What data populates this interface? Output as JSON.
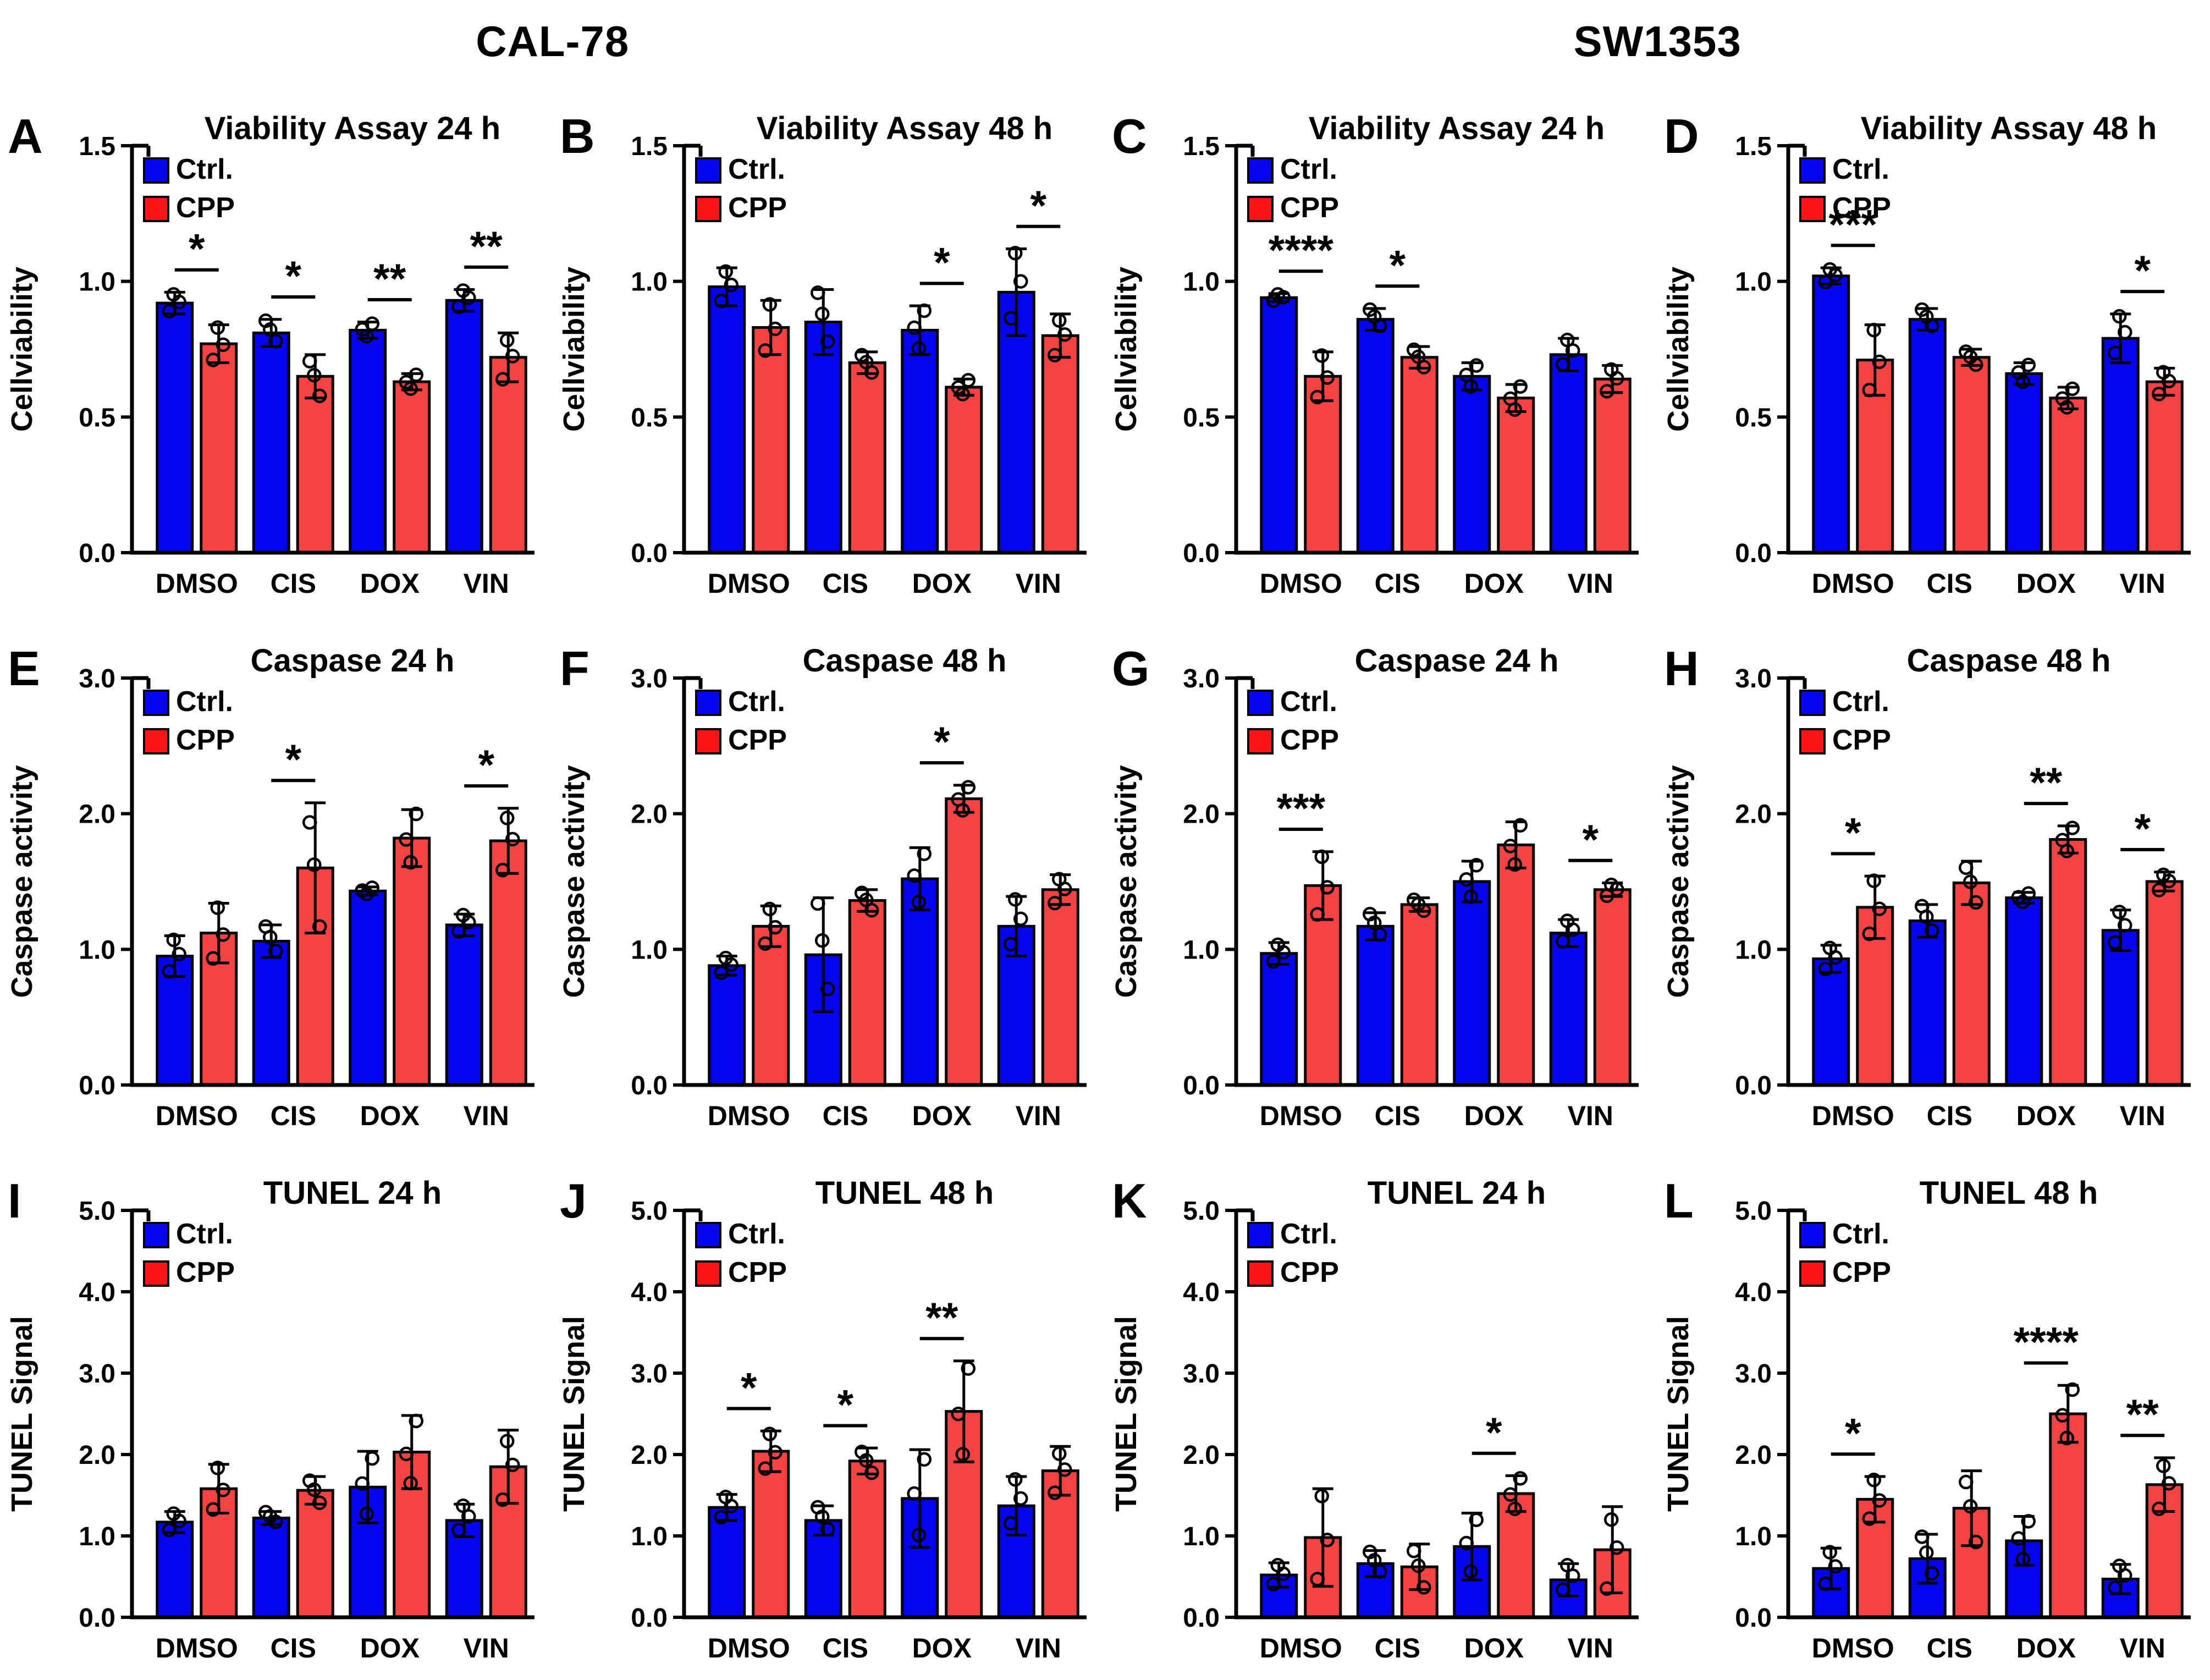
{
  "figure": {
    "column_headers": [
      {
        "label": "CAL-78"
      },
      {
        "label": "SW1353"
      }
    ],
    "legend": {
      "ctrl_label": "Ctrl.",
      "cpp_label": "CPP"
    },
    "colors": {
      "ctrl_bar": "#0505f0",
      "cpp_bar": "#f54343",
      "cpp_legend_swatch": "#fb1414",
      "ctrl_legend_swatch": "#0505f0",
      "axis": "#000000",
      "background": "#ffffff"
    }
  },
  "chart_data": [
    {
      "type": "bar",
      "panel": "A",
      "title": "Viability Assay 24 h",
      "ylabel": "Cellviability",
      "ymax": 1.5,
      "ystep": 0.5,
      "categories": [
        "DMSO",
        "CIS",
        "DOX",
        "VIN"
      ],
      "series": [
        {
          "name": "Ctrl.",
          "values": [
            0.92,
            0.81,
            0.82,
            0.93
          ],
          "errors": [
            0.04,
            0.05,
            0.03,
            0.04
          ]
        },
        {
          "name": "CPP",
          "values": [
            0.77,
            0.65,
            0.63,
            0.72
          ],
          "errors": [
            0.07,
            0.08,
            0.03,
            0.09
          ]
        }
      ],
      "sig": [
        "*",
        "*",
        "**",
        "**"
      ]
    },
    {
      "type": "bar",
      "panel": "B",
      "title": "Viability Assay 48 h",
      "ylabel": "Cellviability",
      "ymax": 1.5,
      "ystep": 0.5,
      "categories": [
        "DMSO",
        "CIS",
        "DOX",
        "VIN"
      ],
      "series": [
        {
          "name": "Ctrl.",
          "values": [
            0.98,
            0.85,
            0.82,
            0.96
          ],
          "errors": [
            0.07,
            0.12,
            0.09,
            0.16
          ]
        },
        {
          "name": "CPP",
          "values": [
            0.83,
            0.7,
            0.61,
            0.8
          ],
          "errors": [
            0.1,
            0.04,
            0.03,
            0.08
          ]
        }
      ],
      "sig": [
        null,
        null,
        "*",
        "*"
      ]
    },
    {
      "type": "bar",
      "panel": "C",
      "title": "Viability Assay 24 h",
      "ylabel": "Cellviability",
      "ymax": 1.5,
      "ystep": 0.5,
      "categories": [
        "DMSO",
        "CIS",
        "DOX",
        "VIN"
      ],
      "series": [
        {
          "name": "Ctrl.",
          "values": [
            0.94,
            0.86,
            0.65,
            0.73
          ],
          "errors": [
            0.015,
            0.04,
            0.05,
            0.06
          ]
        },
        {
          "name": "CPP",
          "values": [
            0.65,
            0.72,
            0.57,
            0.64
          ],
          "errors": [
            0.09,
            0.04,
            0.05,
            0.05
          ]
        }
      ],
      "sig": [
        "****",
        "*",
        null,
        null
      ]
    },
    {
      "type": "bar",
      "panel": "D",
      "title": "Viability Assay 48 h",
      "ylabel": "Cellviability",
      "ymax": 1.5,
      "ystep": 0.5,
      "categories": [
        "DMSO",
        "CIS",
        "DOX",
        "VIN"
      ],
      "series": [
        {
          "name": "Ctrl.",
          "values": [
            1.02,
            0.86,
            0.66,
            0.79
          ],
          "errors": [
            0.03,
            0.04,
            0.04,
            0.09
          ]
        },
        {
          "name": "CPP",
          "values": [
            0.71,
            0.72,
            0.57,
            0.63
          ],
          "errors": [
            0.13,
            0.03,
            0.04,
            0.05
          ]
        }
      ],
      "sig": [
        "***",
        null,
        null,
        "*"
      ]
    },
    {
      "type": "bar",
      "panel": "E",
      "title": "Caspase 24 h",
      "ylabel": "Caspase activity",
      "ymax": 3.0,
      "ystep": 1.0,
      "categories": [
        "DMSO",
        "CIS",
        "DOX",
        "VIN"
      ],
      "series": [
        {
          "name": "Ctrl.",
          "values": [
            0.95,
            1.06,
            1.43,
            1.18
          ],
          "errors": [
            0.15,
            0.12,
            0.03,
            0.08
          ]
        },
        {
          "name": "CPP",
          "values": [
            1.12,
            1.6,
            1.82,
            1.8
          ],
          "errors": [
            0.22,
            0.48,
            0.21,
            0.24
          ]
        }
      ],
      "sig": [
        null,
        "*",
        null,
        "*"
      ]
    },
    {
      "type": "bar",
      "panel": "F",
      "title": "Caspase 48 h",
      "ylabel": "Caspase activity",
      "ymax": 3.0,
      "ystep": 1.0,
      "categories": [
        "DMSO",
        "CIS",
        "DOX",
        "VIN"
      ],
      "series": [
        {
          "name": "Ctrl.",
          "values": [
            0.88,
            0.96,
            1.52,
            1.17
          ],
          "errors": [
            0.07,
            0.42,
            0.23,
            0.22
          ]
        },
        {
          "name": "CPP",
          "values": [
            1.17,
            1.36,
            2.11,
            1.44
          ],
          "errors": [
            0.15,
            0.08,
            0.1,
            0.11
          ]
        }
      ],
      "sig": [
        null,
        null,
        "*",
        null
      ]
    },
    {
      "type": "bar",
      "panel": "G",
      "title": "Caspase 24 h",
      "ylabel": "Caspase activity",
      "ymax": 3.0,
      "ystep": 1.0,
      "categories": [
        "DMSO",
        "CIS",
        "DOX",
        "VIN"
      ],
      "series": [
        {
          "name": "Ctrl.",
          "values": [
            0.97,
            1.17,
            1.5,
            1.12
          ],
          "errors": [
            0.08,
            0.1,
            0.15,
            0.1
          ]
        },
        {
          "name": "CPP",
          "values": [
            1.47,
            1.33,
            1.77,
            1.44
          ],
          "errors": [
            0.25,
            0.05,
            0.17,
            0.05
          ]
        }
      ],
      "sig": [
        "***",
        null,
        null,
        "*"
      ]
    },
    {
      "type": "bar",
      "panel": "H",
      "title": "Caspase 48 h",
      "ylabel": "Caspase activity",
      "ymax": 3.0,
      "ystep": 1.0,
      "categories": [
        "DMSO",
        "CIS",
        "DOX",
        "VIN"
      ],
      "series": [
        {
          "name": "Ctrl.",
          "values": [
            0.93,
            1.21,
            1.38,
            1.14
          ],
          "errors": [
            0.1,
            0.12,
            0.04,
            0.15
          ]
        },
        {
          "name": "CPP",
          "values": [
            1.31,
            1.49,
            1.81,
            1.5
          ],
          "errors": [
            0.23,
            0.16,
            0.1,
            0.07
          ]
        }
      ],
      "sig": [
        "*",
        null,
        "**",
        "*"
      ]
    },
    {
      "type": "bar",
      "panel": "I",
      "title": "TUNEL 24 h",
      "ylabel": "TUNEL Signal",
      "ymax": 5.0,
      "ystep": 1.0,
      "categories": [
        "DMSO",
        "CIS",
        "DOX",
        "VIN"
      ],
      "series": [
        {
          "name": "Ctrl.",
          "values": [
            1.17,
            1.22,
            1.6,
            1.19
          ],
          "errors": [
            0.13,
            0.08,
            0.44,
            0.2
          ]
        },
        {
          "name": "CPP",
          "values": [
            1.58,
            1.56,
            2.03,
            1.85
          ],
          "errors": [
            0.3,
            0.17,
            0.45,
            0.45
          ]
        }
      ],
      "sig": [
        null,
        null,
        null,
        null
      ]
    },
    {
      "type": "bar",
      "panel": "J",
      "title": "TUNEL 48 h",
      "ylabel": "TUNEL Signal",
      "ymax": 5.0,
      "ystep": 1.0,
      "categories": [
        "DMSO",
        "CIS",
        "DOX",
        "VIN"
      ],
      "series": [
        {
          "name": "Ctrl.",
          "values": [
            1.35,
            1.19,
            1.46,
            1.37
          ],
          "errors": [
            0.16,
            0.18,
            0.6,
            0.36
          ]
        },
        {
          "name": "CPP",
          "values": [
            2.04,
            1.92,
            2.53,
            1.8
          ],
          "errors": [
            0.25,
            0.16,
            0.62,
            0.3
          ]
        }
      ],
      "sig": [
        "*",
        "*",
        "**",
        null
      ]
    },
    {
      "type": "bar",
      "panel": "K",
      "title": "TUNEL 24 h",
      "ylabel": "TUNEL Signal",
      "ymax": 5.0,
      "ystep": 1.0,
      "categories": [
        "DMSO",
        "CIS",
        "DOX",
        "VIN"
      ],
      "series": [
        {
          "name": "Ctrl.",
          "values": [
            0.52,
            0.66,
            0.87,
            0.46
          ],
          "errors": [
            0.15,
            0.16,
            0.41,
            0.2
          ]
        },
        {
          "name": "CPP",
          "values": [
            0.98,
            0.62,
            1.52,
            0.83
          ],
          "errors": [
            0.6,
            0.28,
            0.22,
            0.53
          ]
        }
      ],
      "sig": [
        null,
        null,
        "*",
        null
      ]
    },
    {
      "type": "bar",
      "panel": "L",
      "title": "TUNEL 48 h",
      "ylabel": "TUNEL Signal",
      "ymax": 5.0,
      "ystep": 1.0,
      "categories": [
        "DMSO",
        "CIS",
        "DOX",
        "VIN"
      ],
      "series": [
        {
          "name": "Ctrl.",
          "values": [
            0.6,
            0.72,
            0.94,
            0.47
          ],
          "errors": [
            0.25,
            0.3,
            0.3,
            0.18
          ]
        },
        {
          "name": "CPP",
          "values": [
            1.45,
            1.34,
            2.5,
            1.63
          ],
          "errors": [
            0.28,
            0.46,
            0.35,
            0.33
          ]
        }
      ],
      "sig": [
        "*",
        null,
        "****",
        "**"
      ]
    }
  ]
}
